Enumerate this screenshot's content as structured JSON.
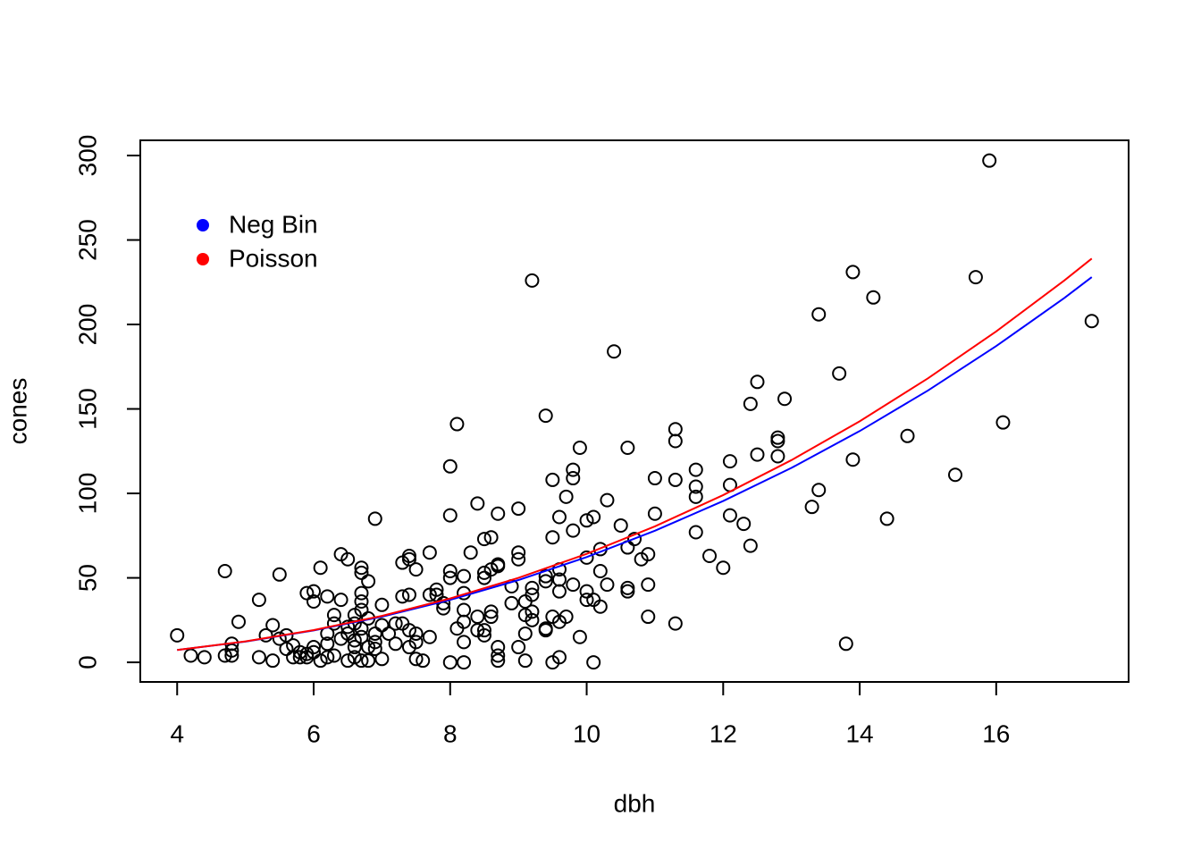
{
  "chart_data": {
    "type": "scatter",
    "xlabel": "dbh",
    "ylabel": "cones",
    "xlim": [
      3.46,
      17.94
    ],
    "ylim": [
      -11.6,
      309.0
    ],
    "xticks": [
      4,
      6,
      8,
      10,
      12,
      14,
      16
    ],
    "yticks": [
      0,
      50,
      100,
      150,
      200,
      250,
      300
    ],
    "legend": "top-left",
    "points": {
      "color": "#000000",
      "x": [
        4.0,
        4.2,
        4.4,
        4.7,
        4.7,
        4.8,
        4.8,
        4.8,
        4.9,
        5.2,
        5.2,
        5.3,
        5.4,
        5.4,
        5.5,
        5.5,
        5.6,
        5.6,
        5.7,
        5.7,
        5.8,
        5.8,
        5.9,
        5.9,
        5.9,
        6.0,
        6.0,
        6.0,
        6.0,
        6.1,
        6.1,
        6.2,
        6.2,
        6.2,
        6.2,
        6.3,
        6.3,
        6.3,
        6.4,
        6.4,
        6.4,
        6.5,
        6.5,
        6.5,
        6.5,
        6.6,
        6.6,
        6.6,
        6.6,
        6.6,
        6.7,
        6.7,
        6.7,
        6.7,
        6.7,
        6.7,
        6.7,
        6.7,
        6.8,
        6.8,
        6.8,
        6.8,
        6.9,
        6.9,
        6.9,
        6.9,
        7.0,
        7.0,
        7.0,
        7.1,
        7.2,
        7.2,
        7.3,
        7.3,
        7.3,
        7.4,
        7.4,
        7.4,
        7.4,
        7.4,
        7.5,
        7.5,
        7.5,
        7.5,
        7.6,
        7.7,
        7.7,
        7.7,
        7.8,
        7.8,
        7.9,
        7.9,
        8.0,
        8.0,
        8.0,
        8.0,
        8.0,
        8.1,
        8.1,
        8.2,
        8.2,
        8.2,
        8.2,
        8.2,
        8.2,
        8.3,
        8.4,
        8.4,
        8.4,
        8.5,
        8.5,
        8.5,
        8.5,
        8.5,
        8.6,
        8.6,
        8.6,
        8.6,
        8.7,
        8.7,
        8.7,
        8.7,
        8.7,
        8.7,
        8.9,
        8.9,
        9.0,
        9.0,
        9.0,
        9.0,
        9.1,
        9.1,
        9.1,
        9.1,
        9.2,
        9.2,
        9.2,
        9.2,
        9.2,
        9.4,
        9.4,
        9.4,
        9.4,
        9.4,
        9.5,
        9.5,
        9.5,
        9.5,
        9.6,
        9.6,
        9.6,
        9.6,
        9.6,
        9.6,
        9.7,
        9.7,
        9.8,
        9.8,
        9.8,
        9.8,
        9.9,
        9.9,
        10.0,
        10.0,
        10.0,
        10.0,
        10.1,
        10.1,
        10.1,
        10.2,
        10.2,
        10.2,
        10.3,
        10.3,
        10.4,
        10.5,
        10.6,
        10.6,
        10.6,
        10.6,
        10.7,
        10.8,
        10.9,
        10.9,
        10.9,
        11.0,
        11.0,
        11.3,
        11.3,
        11.3,
        11.3,
        11.6,
        11.6,
        11.6,
        11.6,
        11.8,
        12.0,
        12.1,
        12.1,
        12.1,
        12.3,
        12.4,
        12.4,
        12.5,
        12.5,
        12.8,
        12.8,
        12.8,
        12.9,
        13.3,
        13.4,
        13.4,
        13.7,
        13.8,
        13.9,
        13.9,
        14.2,
        14.4,
        14.7,
        15.4,
        15.7,
        15.9,
        16.1,
        17.4
      ],
      "values": [
        16,
        4,
        3,
        54,
        4,
        11,
        7,
        4,
        24,
        37,
        3,
        16,
        22,
        1,
        52,
        14,
        16,
        8,
        10,
        3,
        6,
        3,
        41,
        5,
        3,
        42,
        36,
        9,
        6,
        56,
        1,
        39,
        17,
        11,
        3,
        28,
        23,
        4,
        64,
        37,
        14,
        61,
        21,
        17,
        1,
        28,
        23,
        13,
        9,
        3,
        56,
        53,
        41,
        36,
        31,
        20,
        15,
        1,
        48,
        26,
        9,
        1,
        85,
        17,
        12,
        8,
        34,
        22,
        2,
        17,
        23,
        11,
        59,
        39,
        23,
        63,
        61,
        40,
        19,
        9,
        55,
        17,
        12,
        2,
        1,
        65,
        40,
        15,
        43,
        40,
        35,
        32,
        116,
        87,
        54,
        50,
        0,
        141,
        20,
        51,
        41,
        31,
        24,
        12,
        0,
        65,
        94,
        27,
        19,
        73,
        53,
        50,
        19,
        16,
        74,
        55,
        30,
        27,
        88,
        58,
        57,
        9,
        4,
        1,
        45,
        35,
        91,
        65,
        61,
        9,
        36,
        28,
        17,
        1,
        226,
        44,
        40,
        30,
        25,
        146,
        51,
        48,
        20,
        19,
        108,
        74,
        27,
        0,
        86,
        55,
        49,
        42,
        24,
        3,
        98,
        27,
        114,
        109,
        78,
        46,
        127,
        15,
        84,
        62,
        42,
        37,
        86,
        37,
        0,
        67,
        54,
        33,
        96,
        46,
        184,
        81,
        127,
        68,
        44,
        42,
        73,
        61,
        64,
        46,
        27,
        109,
        88,
        138,
        131,
        108,
        23,
        114,
        104,
        98,
        77,
        63,
        56,
        119,
        105,
        87,
        82,
        153,
        69,
        166,
        123,
        133,
        131,
        122,
        156,
        92,
        206,
        102,
        171,
        11,
        231,
        120,
        216,
        85,
        134,
        111,
        228,
        297,
        142,
        202
      ]
    },
    "series": [
      {
        "name": "Neg Bin",
        "color": "#0000ff",
        "x": [
          4,
          5,
          6,
          7,
          8,
          9,
          10,
          11,
          12,
          13,
          14,
          15,
          16,
          17,
          17.4
        ],
        "values": [
          7.3,
          12.3,
          18.9,
          27.0,
          37.0,
          48.7,
          62.3,
          77.9,
          95.5,
          115.1,
          136.9,
          160.9,
          187.2,
          215.7,
          228.0
        ]
      },
      {
        "name": "Poisson",
        "color": "#ff0000",
        "x": [
          4,
          5,
          6,
          7,
          8,
          9,
          10,
          11,
          12,
          13,
          14,
          15,
          16,
          17,
          17.4
        ],
        "values": [
          7.3,
          12.4,
          19.1,
          27.5,
          37.8,
          50.0,
          64.2,
          80.5,
          99.0,
          119.7,
          142.7,
          168.1,
          195.9,
          226.1,
          239.0
        ]
      }
    ]
  }
}
